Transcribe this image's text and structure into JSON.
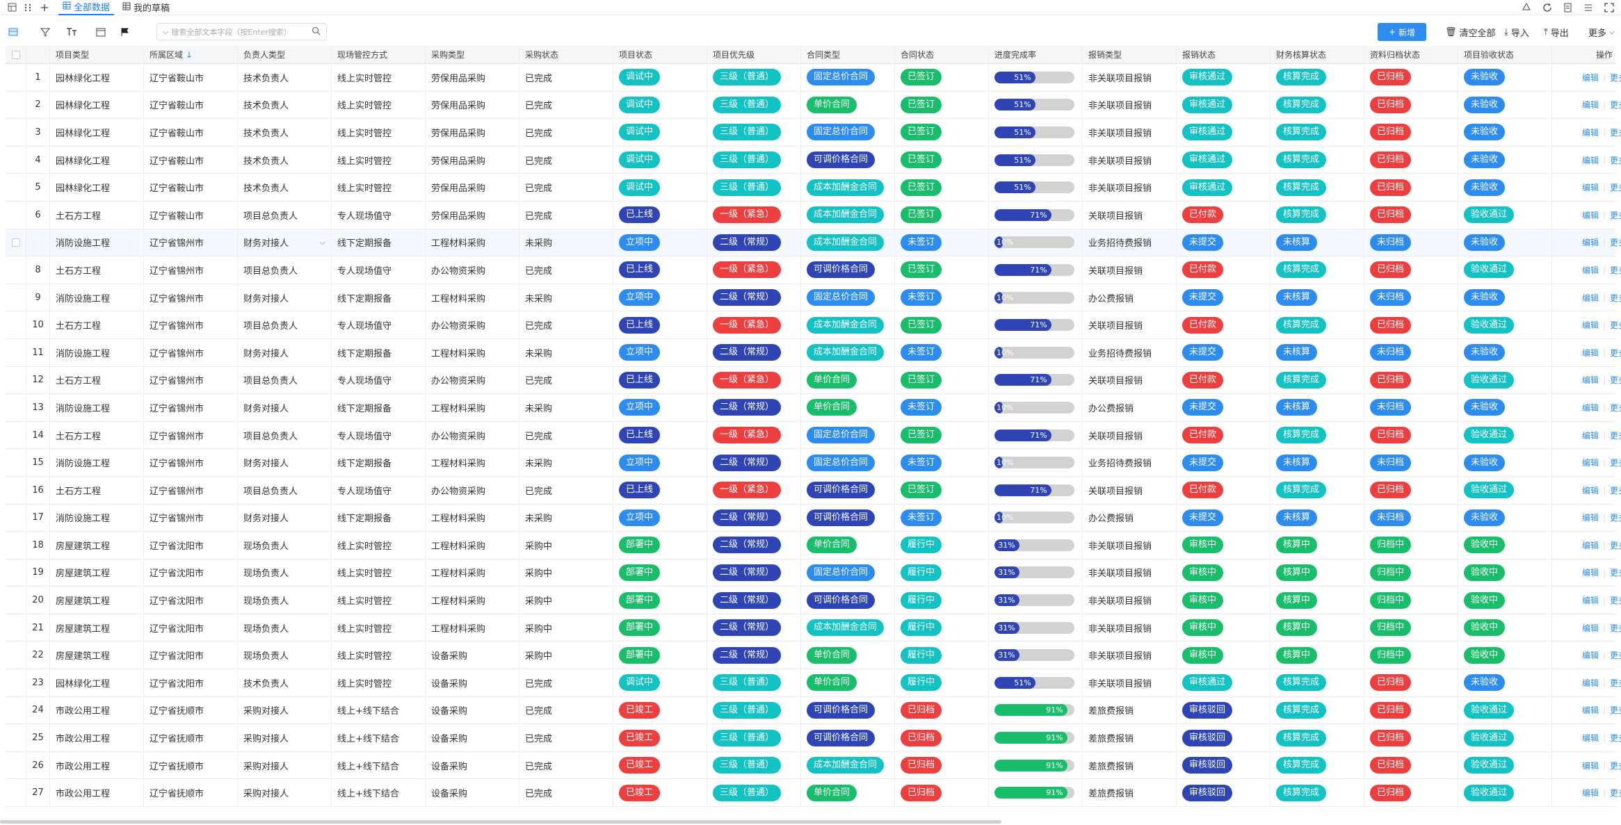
{
  "tabs": [
    {
      "label": "全部数据",
      "icon": "grid-icon"
    },
    {
      "label": "我的草稿",
      "icon": "grid-icon"
    }
  ],
  "search": {
    "placeholder": "搜索全部文本字段（按Enter搜索）"
  },
  "actions": {
    "new": "新增",
    "clear": "清空全部",
    "import": "导入",
    "export": "导出",
    "more": "更多"
  },
  "columns": [
    "项目类型",
    "所属区域",
    "负责人类型",
    "现场管控方式",
    "采购类型",
    "采购状态",
    "项目状态",
    "项目优先级",
    "合同类型",
    "合同状态",
    "进度完成率",
    "报销类型",
    "报销状态",
    "财务核算状态",
    "资料归档状态",
    "项目验收状态",
    "操作"
  ],
  "op_labels": {
    "edit": "编辑",
    "more": "更多"
  },
  "colors": {
    "primary": "#2d8cf0",
    "teal": "#13c2c2",
    "green": "#19be6b",
    "red": "#ed3f3f",
    "navy": "#2f45b6",
    "bar_blue": "#2f45b6",
    "bar_green": "#19be6b"
  },
  "rows": [
    {
      "no": "1",
      "type": "园林绿化工程",
      "region": "辽宁省鞍山市",
      "owner": "技术负责人",
      "control": "线上实时管控",
      "purchase": "劳保用品采购",
      "pstatus": "已完成",
      "proj": "调试中",
      "prio": "三级（普通）",
      "ctype": "固定总价合同",
      "cstatus": "已签订",
      "progress": 51,
      "progress_label": "51%",
      "rtype": "非关联项目报销",
      "rstatus": "审核通过",
      "fin": "核算完成",
      "arch": "已归档",
      "acc": "未验收"
    },
    {
      "no": "2",
      "type": "园林绿化工程",
      "region": "辽宁省鞍山市",
      "owner": "技术负责人",
      "control": "线上实时管控",
      "purchase": "劳保用品采购",
      "pstatus": "已完成",
      "proj": "调试中",
      "prio": "三级（普通）",
      "ctype": "单价合同",
      "cstatus": "已签订",
      "progress": 51,
      "progress_label": "51%",
      "rtype": "非关联项目报销",
      "rstatus": "审核通过",
      "fin": "核算完成",
      "arch": "已归档",
      "acc": "未验收"
    },
    {
      "no": "3",
      "type": "园林绿化工程",
      "region": "辽宁省鞍山市",
      "owner": "技术负责人",
      "control": "线上实时管控",
      "purchase": "劳保用品采购",
      "pstatus": "已完成",
      "proj": "调试中",
      "prio": "三级（普通）",
      "ctype": "固定总价合同",
      "cstatus": "已签订",
      "progress": 51,
      "progress_label": "51%",
      "rtype": "非关联项目报销",
      "rstatus": "审核通过",
      "fin": "核算完成",
      "arch": "已归档",
      "acc": "未验收"
    },
    {
      "no": "4",
      "type": "园林绿化工程",
      "region": "辽宁省鞍山市",
      "owner": "技术负责人",
      "control": "线上实时管控",
      "purchase": "劳保用品采购",
      "pstatus": "已完成",
      "proj": "调试中",
      "prio": "三级（普通）",
      "ctype": "可调价格合同",
      "cstatus": "已签订",
      "progress": 51,
      "progress_label": "51%",
      "rtype": "非关联项目报销",
      "rstatus": "审核通过",
      "fin": "核算完成",
      "arch": "已归档",
      "acc": "未验收"
    },
    {
      "no": "5",
      "type": "园林绿化工程",
      "region": "辽宁省鞍山市",
      "owner": "技术负责人",
      "control": "线上实时管控",
      "purchase": "劳保用品采购",
      "pstatus": "已完成",
      "proj": "调试中",
      "prio": "三级（普通）",
      "ctype": "成本加酬金合同",
      "cstatus": "已签订",
      "progress": 51,
      "progress_label": "51%",
      "rtype": "非关联项目报销",
      "rstatus": "审核通过",
      "fin": "核算完成",
      "arch": "已归档",
      "acc": "未验收"
    },
    {
      "no": "6",
      "type": "土石方工程",
      "region": "辽宁省鞍山市",
      "owner": "项目总负责人",
      "control": "专人现场值守",
      "purchase": "劳保用品采购",
      "pstatus": "已完成",
      "proj": "已上线",
      "prio": "一级（紧急）",
      "ctype": "成本加酬金合同",
      "cstatus": "已签订",
      "progress": 71,
      "progress_label": "71%",
      "rtype": "关联项目报销",
      "rstatus": "已付款",
      "fin": "核算完成",
      "arch": "已归档",
      "acc": "验收通过"
    },
    {
      "no": "",
      "type": "消防设施工程",
      "region": "辽宁省锦州市",
      "owner": "财务对接人",
      "control": "线下定期报备",
      "purchase": "工程材料采购",
      "pstatus": "未采购",
      "proj": "立项中",
      "prio": "二级（常规）",
      "ctype": "成本加酬金合同",
      "cstatus": "未签订",
      "progress": 10,
      "progress_label": "10%",
      "rtype": "业务招待费报销",
      "rstatus": "未提交",
      "fin": "未核算",
      "arch": "未归档",
      "acc": "未验收"
    },
    {
      "no": "8",
      "type": "土石方工程",
      "region": "辽宁省锦州市",
      "owner": "项目总负责人",
      "control": "专人现场值守",
      "purchase": "办公物资采购",
      "pstatus": "已完成",
      "proj": "已上线",
      "prio": "一级（紧急）",
      "ctype": "可调价格合同",
      "cstatus": "已签订",
      "progress": 71,
      "progress_label": "71%",
      "rtype": "关联项目报销",
      "rstatus": "已付款",
      "fin": "核算完成",
      "arch": "已归档",
      "acc": "验收通过"
    },
    {
      "no": "9",
      "type": "消防设施工程",
      "region": "辽宁省锦州市",
      "owner": "财务对接人",
      "control": "线下定期报备",
      "purchase": "工程材料采购",
      "pstatus": "未采购",
      "proj": "立项中",
      "prio": "二级（常规）",
      "ctype": "固定总价合同",
      "cstatus": "未签订",
      "progress": 10,
      "progress_label": "10%",
      "rtype": "办公费报销",
      "rstatus": "未提交",
      "fin": "未核算",
      "arch": "未归档",
      "acc": "未验收"
    },
    {
      "no": "10",
      "type": "土石方工程",
      "region": "辽宁省锦州市",
      "owner": "项目总负责人",
      "control": "专人现场值守",
      "purchase": "办公物资采购",
      "pstatus": "已完成",
      "proj": "已上线",
      "prio": "一级（紧急）",
      "ctype": "成本加酬金合同",
      "cstatus": "已签订",
      "progress": 71,
      "progress_label": "71%",
      "rtype": "关联项目报销",
      "rstatus": "已付款",
      "fin": "核算完成",
      "arch": "已归档",
      "acc": "验收通过"
    },
    {
      "no": "11",
      "type": "消防设施工程",
      "region": "辽宁省锦州市",
      "owner": "财务对接人",
      "control": "线下定期报备",
      "purchase": "工程材料采购",
      "pstatus": "未采购",
      "proj": "立项中",
      "prio": "二级（常规）",
      "ctype": "成本加酬金合同",
      "cstatus": "未签订",
      "progress": 10,
      "progress_label": "10%",
      "rtype": "业务招待费报销",
      "rstatus": "未提交",
      "fin": "未核算",
      "arch": "未归档",
      "acc": "未验收"
    },
    {
      "no": "12",
      "type": "土石方工程",
      "region": "辽宁省锦州市",
      "owner": "项目总负责人",
      "control": "专人现场值守",
      "purchase": "办公物资采购",
      "pstatus": "已完成",
      "proj": "已上线",
      "prio": "一级（紧急）",
      "ctype": "单价合同",
      "cstatus": "已签订",
      "progress": 71,
      "progress_label": "71%",
      "rtype": "关联项目报销",
      "rstatus": "已付款",
      "fin": "核算完成",
      "arch": "已归档",
      "acc": "验收通过"
    },
    {
      "no": "13",
      "type": "消防设施工程",
      "region": "辽宁省锦州市",
      "owner": "财务对接人",
      "control": "线下定期报备",
      "purchase": "工程材料采购",
      "pstatus": "未采购",
      "proj": "立项中",
      "prio": "二级（常规）",
      "ctype": "单价合同",
      "cstatus": "未签订",
      "progress": 10,
      "progress_label": "10%",
      "rtype": "办公费报销",
      "rstatus": "未提交",
      "fin": "未核算",
      "arch": "未归档",
      "acc": "未验收"
    },
    {
      "no": "14",
      "type": "土石方工程",
      "region": "辽宁省锦州市",
      "owner": "项目总负责人",
      "control": "专人现场值守",
      "purchase": "办公物资采购",
      "pstatus": "已完成",
      "proj": "已上线",
      "prio": "一级（紧急）",
      "ctype": "固定总价合同",
      "cstatus": "已签订",
      "progress": 71,
      "progress_label": "71%",
      "rtype": "关联项目报销",
      "rstatus": "已付款",
      "fin": "核算完成",
      "arch": "已归档",
      "acc": "验收通过"
    },
    {
      "no": "15",
      "type": "消防设施工程",
      "region": "辽宁省锦州市",
      "owner": "财务对接人",
      "control": "线下定期报备",
      "purchase": "工程材料采购",
      "pstatus": "未采购",
      "proj": "立项中",
      "prio": "二级（常规）",
      "ctype": "固定总价合同",
      "cstatus": "未签订",
      "progress": 10,
      "progress_label": "10%",
      "rtype": "业务招待费报销",
      "rstatus": "未提交",
      "fin": "未核算",
      "arch": "未归档",
      "acc": "未验收"
    },
    {
      "no": "16",
      "type": "土石方工程",
      "region": "辽宁省锦州市",
      "owner": "项目总负责人",
      "control": "专人现场值守",
      "purchase": "办公物资采购",
      "pstatus": "已完成",
      "proj": "已上线",
      "prio": "一级（紧急）",
      "ctype": "可调价格合同",
      "cstatus": "已签订",
      "progress": 71,
      "progress_label": "71%",
      "rtype": "关联项目报销",
      "rstatus": "已付款",
      "fin": "核算完成",
      "arch": "已归档",
      "acc": "验收通过"
    },
    {
      "no": "17",
      "type": "消防设施工程",
      "region": "辽宁省锦州市",
      "owner": "财务对接人",
      "control": "线下定期报备",
      "purchase": "工程材料采购",
      "pstatus": "未采购",
      "proj": "立项中",
      "prio": "二级（常规）",
      "ctype": "可调价格合同",
      "cstatus": "未签订",
      "progress": 10,
      "progress_label": "10%",
      "rtype": "办公费报销",
      "rstatus": "未提交",
      "fin": "未核算",
      "arch": "未归档",
      "acc": "未验收"
    },
    {
      "no": "18",
      "type": "房屋建筑工程",
      "region": "辽宁省沈阳市",
      "owner": "现场负责人",
      "control": "线上实时管控",
      "purchase": "工程材料采购",
      "pstatus": "采购中",
      "proj": "部署中",
      "prio": "二级（常规）",
      "ctype": "单价合同",
      "cstatus": "履行中",
      "progress": 31,
      "progress_label": "31%",
      "rtype": "非关联项目报销",
      "rstatus": "审核中",
      "fin": "核算中",
      "arch": "归档中",
      "acc": "验收中"
    },
    {
      "no": "19",
      "type": "房屋建筑工程",
      "region": "辽宁省沈阳市",
      "owner": "现场负责人",
      "control": "线上实时管控",
      "purchase": "工程材料采购",
      "pstatus": "采购中",
      "proj": "部署中",
      "prio": "二级（常规）",
      "ctype": "固定总价合同",
      "cstatus": "履行中",
      "progress": 31,
      "progress_label": "31%",
      "rtype": "非关联项目报销",
      "rstatus": "审核中",
      "fin": "核算中",
      "arch": "归档中",
      "acc": "验收中"
    },
    {
      "no": "20",
      "type": "房屋建筑工程",
      "region": "辽宁省沈阳市",
      "owner": "现场负责人",
      "control": "线上实时管控",
      "purchase": "工程材料采购",
      "pstatus": "采购中",
      "proj": "部署中",
      "prio": "二级（常规）",
      "ctype": "可调价格合同",
      "cstatus": "履行中",
      "progress": 31,
      "progress_label": "31%",
      "rtype": "非关联项目报销",
      "rstatus": "审核中",
      "fin": "核算中",
      "arch": "归档中",
      "acc": "验收中"
    },
    {
      "no": "21",
      "type": "房屋建筑工程",
      "region": "辽宁省沈阳市",
      "owner": "现场负责人",
      "control": "线上实时管控",
      "purchase": "工程材料采购",
      "pstatus": "采购中",
      "proj": "部署中",
      "prio": "二级（常规）",
      "ctype": "成本加酬金合同",
      "cstatus": "履行中",
      "progress": 31,
      "progress_label": "31%",
      "rtype": "非关联项目报销",
      "rstatus": "审核中",
      "fin": "核算中",
      "arch": "归档中",
      "acc": "验收中"
    },
    {
      "no": "22",
      "type": "房屋建筑工程",
      "region": "辽宁省沈阳市",
      "owner": "现场负责人",
      "control": "线上实时管控",
      "purchase": "设备采购",
      "pstatus": "采购中",
      "proj": "部署中",
      "prio": "二级（常规）",
      "ctype": "单价合同",
      "cstatus": "履行中",
      "progress": 31,
      "progress_label": "31%",
      "rtype": "非关联项目报销",
      "rstatus": "审核中",
      "fin": "核算中",
      "arch": "归档中",
      "acc": "验收中"
    },
    {
      "no": "23",
      "type": "园林绿化工程",
      "region": "辽宁省沈阳市",
      "owner": "技术负责人",
      "control": "线上实时管控",
      "purchase": "设备采购",
      "pstatus": "已完成",
      "proj": "调试中",
      "prio": "三级（普通）",
      "ctype": "单价合同",
      "cstatus": "履行中",
      "progress": 51,
      "progress_label": "51%",
      "rtype": "非关联项目报销",
      "rstatus": "审核通过",
      "fin": "核算完成",
      "arch": "已归档",
      "acc": "未验收"
    },
    {
      "no": "24",
      "type": "市政公用工程",
      "region": "辽宁省抚顺市",
      "owner": "采购对接人",
      "control": "线上+线下结合",
      "purchase": "设备采购",
      "pstatus": "已完成",
      "proj": "已竣工",
      "prio": "三级（普通）",
      "ctype": "可调价格合同",
      "cstatus": "已归档",
      "progress": 91,
      "progress_label": "91%",
      "rtype": "差旅费报销",
      "rstatus": "审核驳回",
      "fin": "核算完成",
      "arch": "已归档",
      "acc": "验收通过"
    },
    {
      "no": "25",
      "type": "市政公用工程",
      "region": "辽宁省抚顺市",
      "owner": "采购对接人",
      "control": "线上+线下结合",
      "purchase": "设备采购",
      "pstatus": "已完成",
      "proj": "已竣工",
      "prio": "三级（普通）",
      "ctype": "可调价格合同",
      "cstatus": "已归档",
      "progress": 91,
      "progress_label": "91%",
      "rtype": "差旅费报销",
      "rstatus": "审核驳回",
      "fin": "核算完成",
      "arch": "已归档",
      "acc": "验收通过"
    },
    {
      "no": "26",
      "type": "市政公用工程",
      "region": "辽宁省抚顺市",
      "owner": "采购对接人",
      "control": "线上+线下结合",
      "purchase": "设备采购",
      "pstatus": "已完成",
      "proj": "已竣工",
      "prio": "三级（普通）",
      "ctype": "成本加酬金合同",
      "cstatus": "已归档",
      "progress": 91,
      "progress_label": "91%",
      "rtype": "差旅费报销",
      "rstatus": "审核驳回",
      "fin": "核算完成",
      "arch": "已归档",
      "acc": "验收通过"
    },
    {
      "no": "27",
      "type": "市政公用工程",
      "region": "辽宁省抚顺市",
      "owner": "采购对接人",
      "control": "线上+线下结合",
      "purchase": "设备采购",
      "pstatus": "已完成",
      "proj": "已竣工",
      "prio": "三级（普通）",
      "ctype": "单价合同",
      "cstatus": "已归档",
      "progress": 91,
      "progress_label": "91%",
      "rtype": "差旅费报销",
      "rstatus": "审核驳回",
      "fin": "核算完成",
      "arch": "已归档",
      "acc": "验收通过"
    }
  ]
}
